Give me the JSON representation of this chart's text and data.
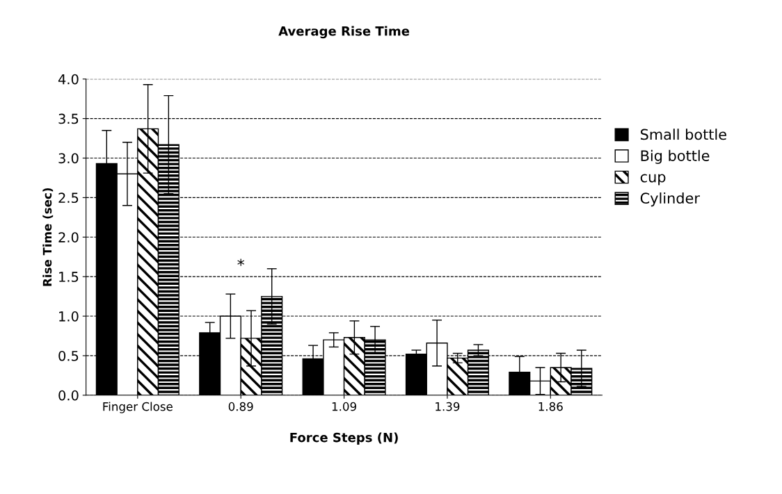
{
  "chart_data": {
    "type": "bar",
    "title": "Average Rise Time",
    "xlabel": "Force Steps (N)",
    "ylabel": "Rise Time (sec)",
    "categories": [
      "Finger Close",
      "0.89",
      "1.09",
      "1.39",
      "1.86"
    ],
    "series": [
      {
        "name": "Small bottle",
        "color": "#000000",
        "values": [
          2.93,
          0.79,
          0.46,
          0.52,
          0.29
        ],
        "errors": [
          0.42,
          0.13,
          0.17,
          0.05,
          0.2
        ]
      },
      {
        "name": "Big bottle",
        "color": "#ffffff",
        "values": [
          2.8,
          1.0,
          0.7,
          0.66,
          0.18
        ],
        "errors": [
          0.4,
          0.28,
          0.09,
          0.29,
          0.17
        ]
      },
      {
        "name": "cup",
        "color": "#000000",
        "values": [
          3.37,
          0.72,
          0.73,
          0.47,
          0.35
        ],
        "errors": [
          0.56,
          0.35,
          0.21,
          0.06,
          0.18
        ]
      },
      {
        "name": "Cylinder",
        "color": "#000000",
        "values": [
          3.17,
          1.25,
          0.7,
          0.57,
          0.34
        ],
        "errors": [
          0.62,
          0.35,
          0.17,
          0.07,
          0.23
        ]
      }
    ],
    "ylim": [
      0,
      4.0
    ],
    "yticks": [
      {
        "value": 0,
        "label": "0.0"
      },
      {
        "value": 0.5,
        "label": "0.5"
      },
      {
        "value": 1,
        "label": "1.0"
      },
      {
        "value": 1.5,
        "label": "1.5"
      },
      {
        "value": 2,
        "label": "2.0"
      },
      {
        "value": 2.5,
        "label": "2.5"
      },
      {
        "value": 3,
        "label": "3.0"
      },
      {
        "value": 3.5,
        "label": "3.5"
      },
      {
        "value": 4,
        "label": "4.0"
      }
    ],
    "annotations": [
      "*"
    ],
    "grid": "y",
    "legend": "right"
  }
}
